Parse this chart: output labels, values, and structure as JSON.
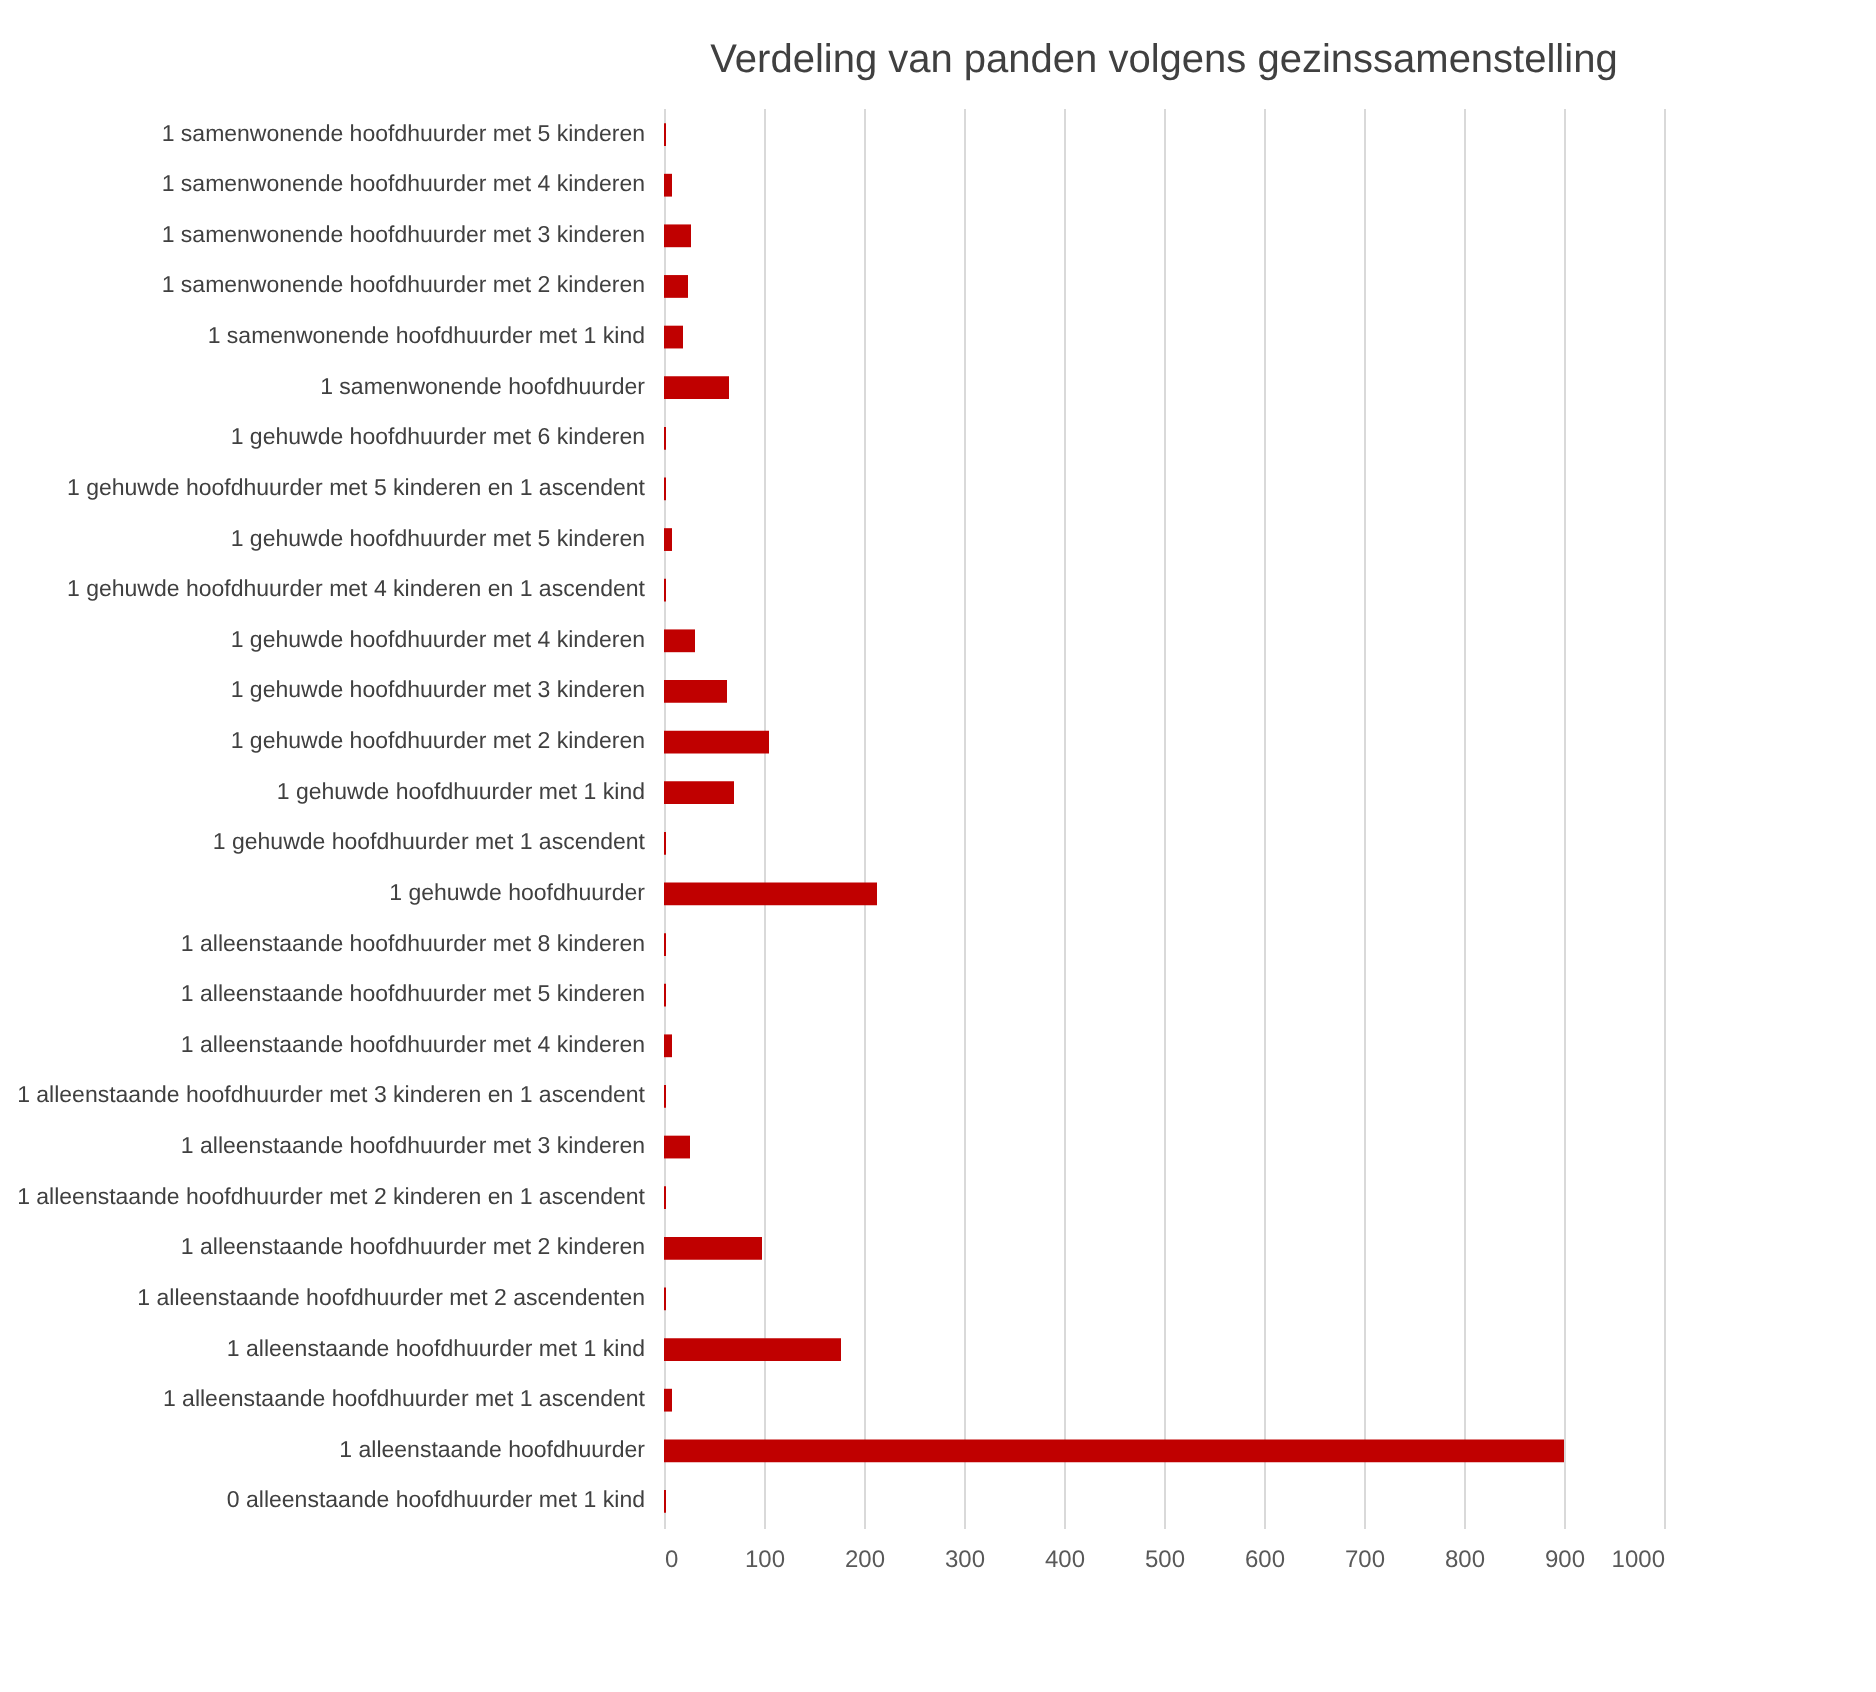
{
  "chart_data": {
    "type": "bar",
    "orientation": "horizontal",
    "title": "Verdeling van panden volgens gezinssamenstelling",
    "categories": [
      "1 samenwonende hoofdhuurder met 5 kinderen",
      "1 samenwonende hoofdhuurder met 4 kinderen",
      "1 samenwonende hoofdhuurder met 3 kinderen",
      "1 samenwonende hoofdhuurder met 2 kinderen",
      "1 samenwonende hoofdhuurder met 1 kind",
      "1 samenwonende hoofdhuurder",
      "1 gehuwde hoofdhuurder met 6 kinderen",
      "1 gehuwde hoofdhuurder met 5 kinderen en 1 ascendent",
      "1 gehuwde hoofdhuurder met 5 kinderen",
      "1 gehuwde hoofdhuurder met 4 kinderen en 1 ascendent",
      "1 gehuwde hoofdhuurder met 4 kinderen",
      "1 gehuwde hoofdhuurder met 3 kinderen",
      "1 gehuwde hoofdhuurder met 2 kinderen",
      "1 gehuwde hoofdhuurder met 1 kind",
      "1 gehuwde hoofdhuurder met 1 ascendent",
      "1 gehuwde hoofdhuurder",
      "1 alleenstaande hoofdhuurder met 8 kinderen",
      "1 alleenstaande hoofdhuurder met 5 kinderen",
      "1 alleenstaande hoofdhuurder met 4 kinderen",
      "1 alleenstaande hoofdhuurder met 3 kinderen en 1 ascendent",
      "1 alleenstaande hoofdhuurder met 3 kinderen",
      "1 alleenstaande hoofdhuurder met 2 kinderen en 1 ascendent",
      "1 alleenstaande hoofdhuurder met 2 kinderen",
      "1 alleenstaande hoofdhuurder met 2 ascendenten",
      "1 alleenstaande hoofdhuurder met 1 kind",
      "1 alleenstaande hoofdhuurder met 1 ascendent",
      "1 alleenstaande hoofdhuurder",
      "0 alleenstaande hoofdhuurder met 1 kind"
    ],
    "values": [
      2,
      8,
      27,
      24,
      19,
      65,
      2,
      2,
      8,
      2,
      31,
      63,
      105,
      70,
      2,
      213,
      2,
      2,
      8,
      2,
      26,
      2,
      98,
      2,
      177,
      8,
      900,
      2
    ],
    "color": "#c00000",
    "xlim": [
      0,
      1000
    ],
    "xticks": [
      0,
      100,
      200,
      300,
      400,
      500,
      600,
      700,
      800,
      900,
      1000
    ],
    "grid": "x"
  }
}
